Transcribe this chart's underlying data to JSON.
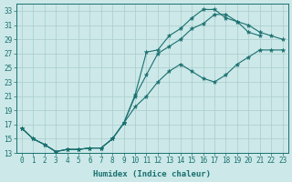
{
  "bg_color": "#cce8e8",
  "grid_color": "#aacccc",
  "line_color": "#1a7070",
  "xlabel": "Humidex (Indice chaleur)",
  "xlim": [
    -0.5,
    23.5
  ],
  "ylim": [
    13,
    34
  ],
  "xticks": [
    0,
    1,
    2,
    3,
    4,
    5,
    6,
    7,
    8,
    9,
    10,
    11,
    12,
    13,
    14,
    15,
    16,
    17,
    18,
    19,
    20,
    21,
    22,
    23
  ],
  "yticks": [
    13,
    15,
    17,
    19,
    21,
    23,
    25,
    27,
    29,
    31,
    33
  ],
  "series": [
    {
      "x": [
        0,
        1,
        2,
        3,
        4,
        5,
        6,
        7,
        8,
        9,
        10,
        11,
        12,
        13,
        14,
        15,
        16,
        17,
        18,
        19,
        20,
        21
      ],
      "y": [
        16.5,
        15.0,
        14.2,
        13.2,
        13.5,
        13.5,
        13.7,
        13.7,
        15.0,
        17.2,
        21.2,
        27.2,
        27.5,
        29.5,
        30.5,
        32.0,
        33.2,
        33.2,
        32.0,
        31.5,
        30.0,
        29.5
      ]
    },
    {
      "x": [
        0,
        1,
        2,
        3,
        4,
        5,
        6,
        7,
        8,
        9,
        10,
        11,
        12,
        13,
        14,
        15,
        16,
        17,
        18,
        19,
        20,
        21,
        22,
        23
      ],
      "y": [
        16.5,
        15.0,
        14.2,
        13.2,
        13.5,
        13.5,
        13.7,
        13.7,
        15.0,
        17.2,
        21.0,
        24.0,
        27.0,
        28.0,
        29.0,
        30.5,
        31.2,
        32.5,
        32.5,
        31.5,
        31.0,
        30.0,
        29.5,
        29.0
      ]
    },
    {
      "x": [
        0,
        1,
        2,
        3,
        4,
        5,
        6,
        7,
        8,
        9,
        10,
        11,
        12,
        13,
        14,
        15,
        16,
        17,
        18,
        19,
        20,
        21,
        22,
        23
      ],
      "y": [
        16.5,
        15.0,
        14.2,
        13.2,
        13.5,
        13.5,
        13.7,
        13.7,
        15.0,
        17.2,
        19.5,
        21.0,
        23.0,
        24.5,
        25.5,
        24.5,
        23.5,
        23.0,
        24.0,
        25.5,
        26.5,
        27.5,
        27.5,
        27.5
      ]
    }
  ]
}
